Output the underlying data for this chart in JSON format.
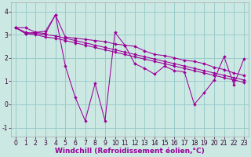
{
  "bg_color": "#cce8e2",
  "line_color": "#990099",
  "grid_color": "#99cccc",
  "xlabel": "Windchill (Refroidissement éolien,°C)",
  "xlabel_fontsize": 6.5,
  "tick_fontsize": 5.5,
  "xlim": [
    -0.5,
    23.5
  ],
  "ylim": [
    -1.4,
    4.4
  ],
  "yticks": [
    -1,
    0,
    1,
    2,
    3,
    4
  ],
  "xticks": [
    0,
    1,
    2,
    3,
    4,
    5,
    6,
    7,
    8,
    9,
    10,
    11,
    12,
    13,
    14,
    15,
    16,
    17,
    18,
    19,
    20,
    21,
    22,
    23
  ],
  "series_jagged": [
    3.3,
    3.05,
    3.1,
    3.15,
    3.85,
    1.65,
    0.3,
    -0.7,
    0.9,
    -0.7,
    3.1,
    2.55,
    1.75,
    1.55,
    1.3,
    1.65,
    1.45,
    1.4,
    0.0,
    0.5,
    1.05,
    2.05,
    0.85,
    1.95
  ],
  "series_trend1": [
    3.3,
    3.3,
    3.1,
    3.05,
    3.85,
    2.9,
    2.85,
    2.8,
    2.75,
    2.7,
    2.6,
    2.55,
    2.5,
    2.3,
    2.15,
    2.1,
    2.0,
    1.9,
    1.85,
    1.75,
    1.6,
    1.5,
    1.35,
    1.25
  ],
  "series_trend2": [
    3.3,
    3.1,
    3.05,
    3.0,
    2.95,
    2.85,
    2.75,
    2.65,
    2.55,
    2.45,
    2.35,
    2.25,
    2.15,
    2.05,
    1.95,
    1.85,
    1.75,
    1.65,
    1.55,
    1.45,
    1.35,
    1.25,
    1.15,
    1.05
  ],
  "series_trend3": [
    3.3,
    3.05,
    3.0,
    2.9,
    2.85,
    2.75,
    2.65,
    2.55,
    2.45,
    2.35,
    2.25,
    2.15,
    2.05,
    1.95,
    1.85,
    1.75,
    1.65,
    1.55,
    1.45,
    1.35,
    1.25,
    1.15,
    1.05,
    0.95
  ]
}
